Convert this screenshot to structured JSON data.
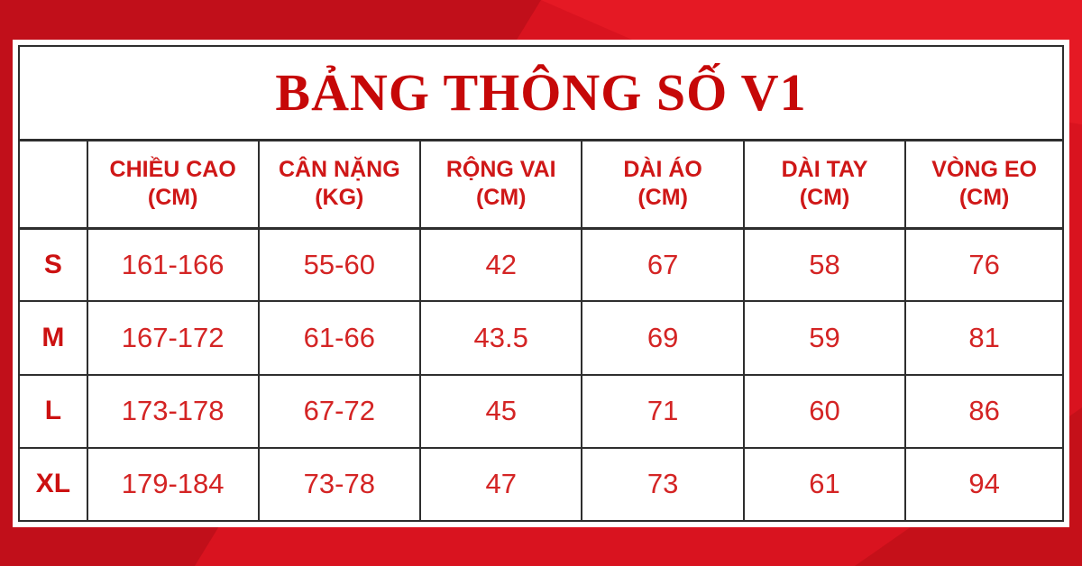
{
  "page": {
    "title": "BẢNG THÔNG SỐ V1"
  },
  "table": {
    "headers": [
      {
        "label": "",
        "unit": ""
      },
      {
        "label": "CHIỀU CAO",
        "unit": "(CM)"
      },
      {
        "label": "CÂN NẶNG",
        "unit": "(KG)"
      },
      {
        "label": "RỘNG VAI",
        "unit": "(CM)"
      },
      {
        "label": "DÀI ÁO",
        "unit": "(CM)"
      },
      {
        "label": "DÀI TAY",
        "unit": "(CM)"
      },
      {
        "label": "VÒNG EO",
        "unit": "(CM)"
      }
    ],
    "rows": [
      {
        "size": "S",
        "values": [
          "161-166",
          "55-60",
          "42",
          "67",
          "58",
          "76"
        ]
      },
      {
        "size": "M",
        "values": [
          "167-172",
          "61-66",
          "43.5",
          "69",
          "59",
          "81"
        ]
      },
      {
        "size": "L",
        "values": [
          "173-178",
          "67-72",
          "45",
          "71",
          "60",
          "86"
        ]
      },
      {
        "size": "XL",
        "values": [
          "179-184",
          "73-78",
          "47",
          "73",
          "61",
          "94"
        ]
      }
    ]
  },
  "chart_data": {
    "type": "table",
    "title": "BẢNG THÔNG SỐ V1",
    "columns": [
      "",
      "CHIỀU CAO (CM)",
      "CÂN NẶNG (KG)",
      "RỘNG VAI (CM)",
      "DÀI ÁO (CM)",
      "DÀI TAY (CM)",
      "VÒNG EO (CM)"
    ],
    "rows": [
      [
        "S",
        "161-166",
        "55-60",
        "42",
        "67",
        "58",
        "76"
      ],
      [
        "M",
        "167-172",
        "61-66",
        "43.5",
        "69",
        "59",
        "81"
      ],
      [
        "L",
        "173-178",
        "67-72",
        "45",
        "71",
        "60",
        "86"
      ],
      [
        "XL",
        "179-184",
        "73-78",
        "47",
        "73",
        "61",
        "94"
      ]
    ]
  },
  "colors": {
    "background_red": "#d9131f",
    "background_red_dark": "#c10f1a",
    "background_red_light": "#e51924",
    "title_red": "#c60808",
    "header_red": "#cf1717",
    "value_red": "#d42424",
    "table_border": "#2e2e2e",
    "panel_white": "#ffffff"
  }
}
